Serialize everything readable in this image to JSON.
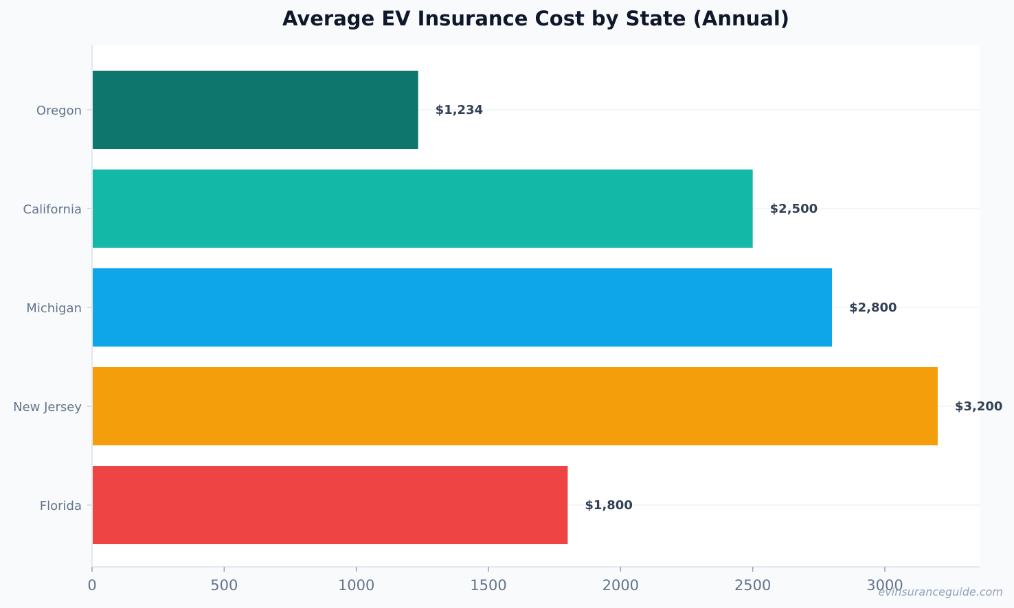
{
  "chart_data": {
    "type": "bar",
    "orientation": "horizontal",
    "title": "Average EV Insurance Cost by State (Annual)",
    "xlabel": "",
    "ylabel": "",
    "categories": [
      "Oregon",
      "California",
      "Michigan",
      "New Jersey",
      "Florida"
    ],
    "values": [
      1234,
      2500,
      2800,
      3200,
      1800
    ],
    "data_labels": [
      "$1,234",
      "$2,500",
      "$2,800",
      "$3,200",
      "$1,800"
    ],
    "colors": [
      "#0f766e",
      "#14b8a6",
      "#0ea5e9",
      "#f59e0b",
      "#ef4444"
    ],
    "xlim": [
      0,
      3360
    ],
    "x_ticks": [
      0,
      500,
      1000,
      1500,
      2000,
      2500,
      3000
    ],
    "x_tick_labels": [
      "0",
      "500",
      "1000",
      "1500",
      "2000",
      "2500",
      "3000"
    ],
    "grid": true,
    "legend": "none"
  },
  "watermark": "evinsuranceguide.com"
}
